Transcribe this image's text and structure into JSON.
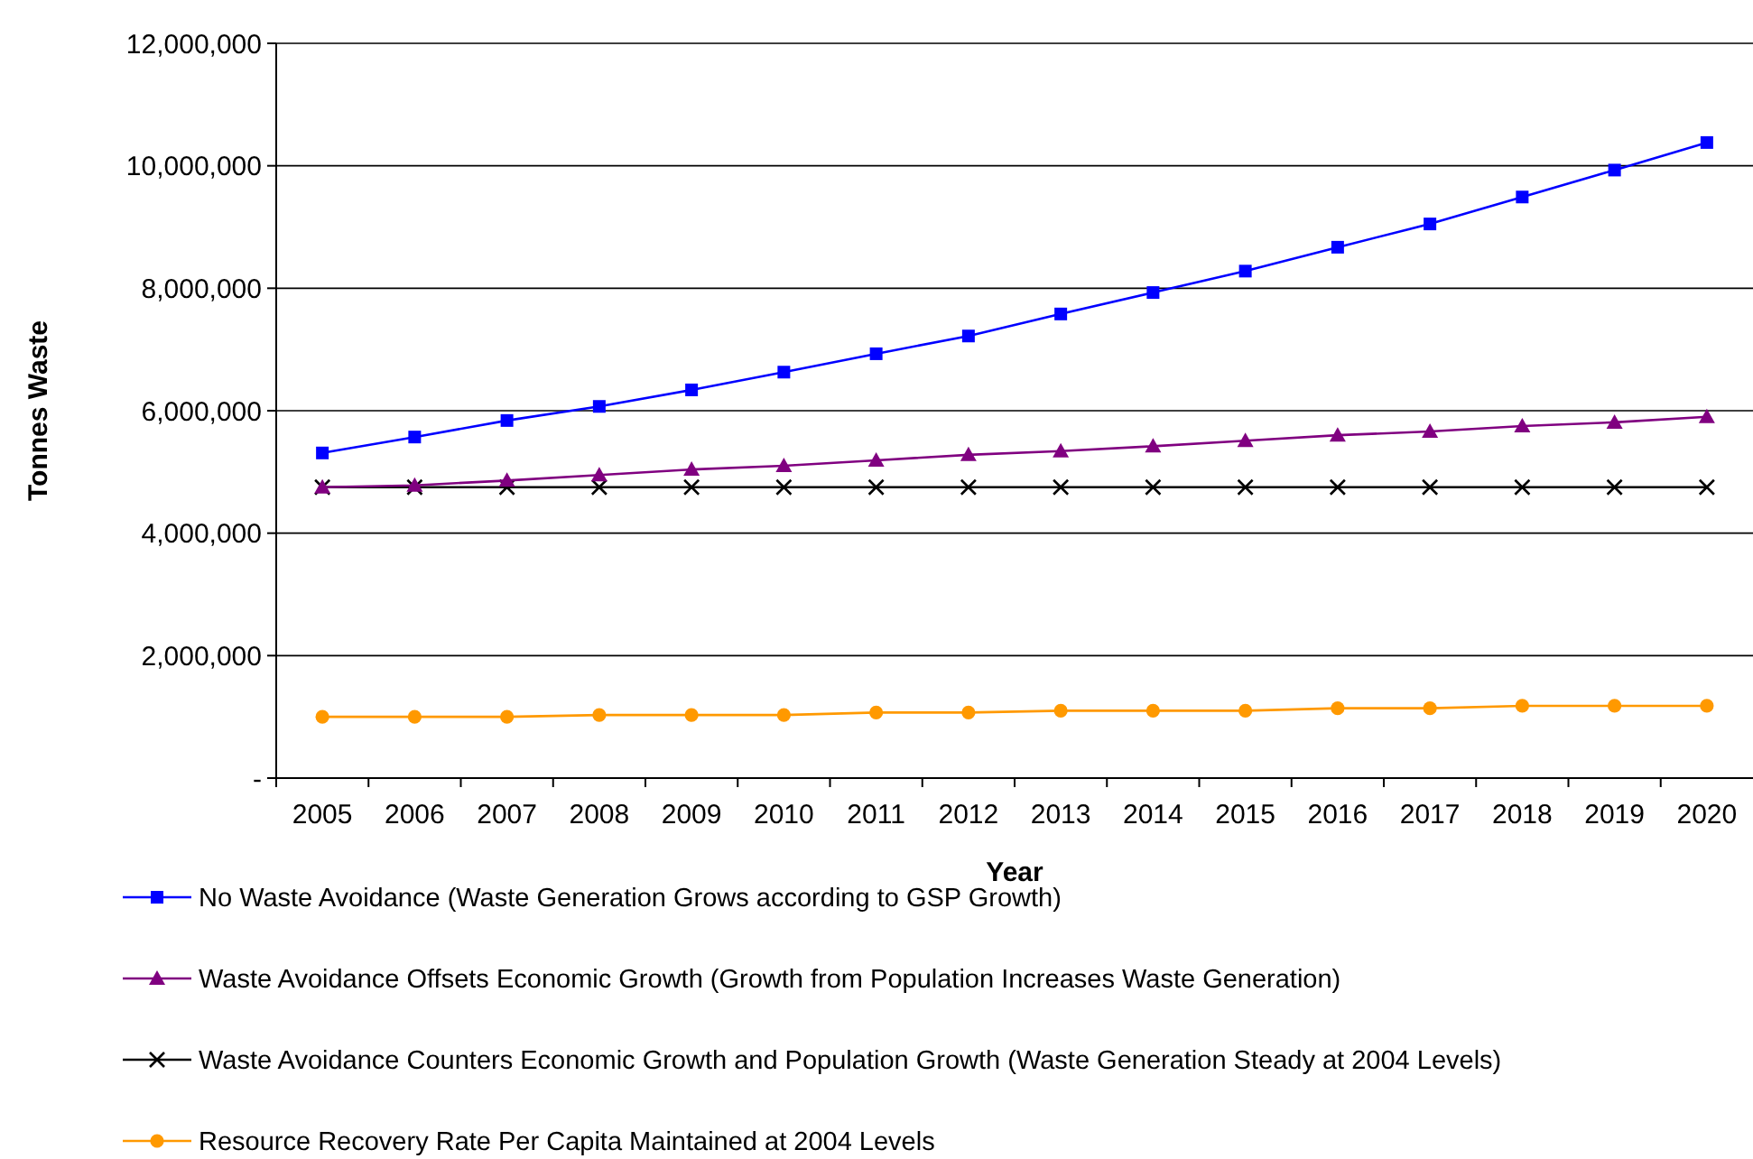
{
  "chart_data": {
    "type": "line",
    "xlabel": "Year",
    "ylabel": "Tonnes Waste",
    "categories": [
      "2005",
      "2006",
      "2007",
      "2008",
      "2009",
      "2010",
      "2011",
      "2012",
      "2013",
      "2014",
      "2015",
      "2016",
      "2017",
      "2018",
      "2019",
      "2020"
    ],
    "ylim": [
      0,
      12000000
    ],
    "yticks": [
      {
        "value": 0,
        "label": "-"
      },
      {
        "value": 2000000,
        "label": "2,000,000"
      },
      {
        "value": 4000000,
        "label": "4,000,000"
      },
      {
        "value": 6000000,
        "label": "6,000,000"
      },
      {
        "value": 8000000,
        "label": "8,000,000"
      },
      {
        "value": 10000000,
        "label": "10,000,000"
      },
      {
        "value": 12000000,
        "label": "12,000,000"
      }
    ],
    "grid": "y",
    "legend": "bottom",
    "series": [
      {
        "name": "No Waste Avoidance (Waste Generation Grows according to GSP Growth)",
        "color": "#0000ff",
        "marker": "square",
        "values": [
          5310000,
          5570000,
          5840000,
          6070000,
          6340000,
          6630000,
          6930000,
          7220000,
          7580000,
          7930000,
          8280000,
          8670000,
          9050000,
          9490000,
          9930000,
          10380000
        ]
      },
      {
        "name": "Waste Avoidance Offsets Economic Growth (Growth from Population Increases Waste Generation)",
        "color": "#800080",
        "marker": "triangle",
        "values": [
          4750000,
          4780000,
          4860000,
          4950000,
          5040000,
          5100000,
          5190000,
          5280000,
          5340000,
          5420000,
          5510000,
          5600000,
          5660000,
          5750000,
          5810000,
          5900000
        ]
      },
      {
        "name": "Waste Avoidance Counters Economic Growth and Population Growth (Waste Generation Steady at 2004 Levels)",
        "color": "#000000",
        "marker": "cross",
        "values": [
          4750000,
          4750000,
          4750000,
          4750000,
          4750000,
          4750000,
          4750000,
          4750000,
          4750000,
          4750000,
          4750000,
          4750000,
          4750000,
          4750000,
          4750000,
          4750000
        ]
      },
      {
        "name": "Resource Recovery Rate Per Capita Maintained at 2004 Levels",
        "color": "#ff9900",
        "marker": "circle",
        "values": [
          1000000,
          1000000,
          1000000,
          1030000,
          1030000,
          1030000,
          1070000,
          1070000,
          1100000,
          1100000,
          1100000,
          1140000,
          1140000,
          1180000,
          1180000,
          1180000
        ]
      }
    ]
  }
}
